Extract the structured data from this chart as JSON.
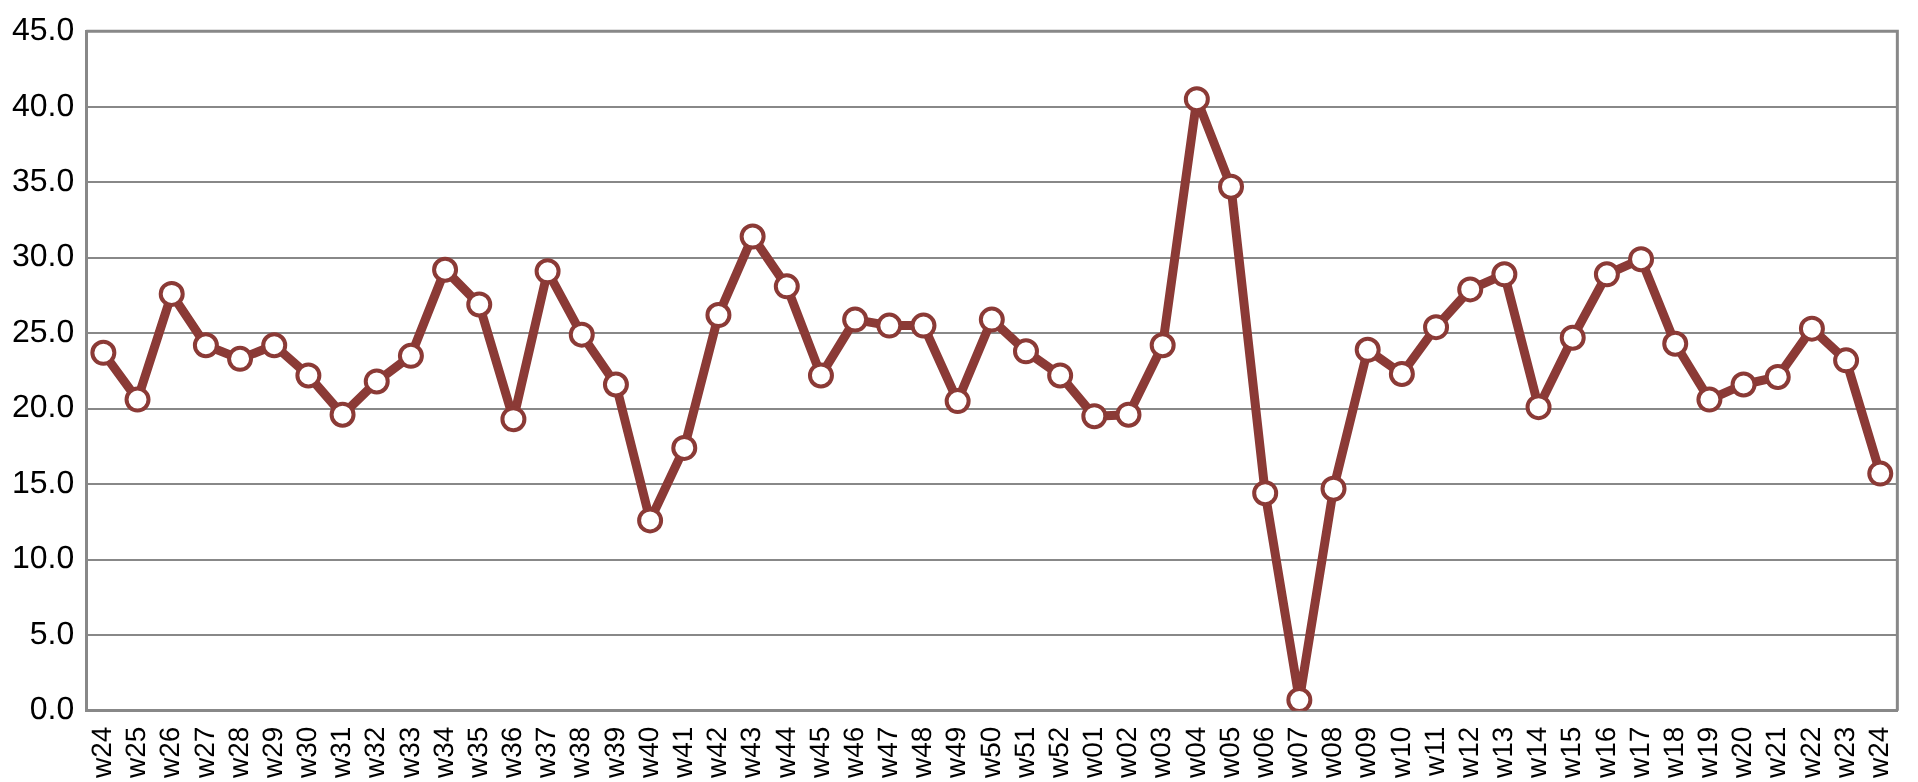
{
  "chart_data": {
    "type": "line",
    "categories": [
      "w24",
      "w25",
      "w26",
      "w27",
      "w28",
      "w29",
      "w30",
      "w31",
      "w32",
      "w33",
      "w34",
      "w35",
      "w36",
      "w37",
      "w38",
      "w39",
      "w40",
      "w41",
      "w42",
      "w43",
      "w44",
      "w45",
      "w46",
      "w47",
      "w48",
      "w49",
      "w50",
      "w51",
      "w52",
      "w01",
      "w02",
      "w03",
      "w04",
      "w05",
      "w06",
      "w07",
      "w08",
      "w09",
      "w10",
      "w11",
      "w12",
      "w13",
      "w14",
      "w15",
      "w16",
      "w17",
      "w18",
      "w19",
      "w20",
      "w21",
      "w22",
      "w23",
      "w24"
    ],
    "series": [
      {
        "color": "#8b3a36",
        "values": [
          23.7,
          20.6,
          27.6,
          24.2,
          23.3,
          24.2,
          22.2,
          19.6,
          21.8,
          23.5,
          29.2,
          26.9,
          19.3,
          29.1,
          24.9,
          21.6,
          12.6,
          17.4,
          26.2,
          31.4,
          28.1,
          22.2,
          25.9,
          25.5,
          25.5,
          20.5,
          25.9,
          23.8,
          22.2,
          19.5,
          19.6,
          24.2,
          40.5,
          34.7,
          14.4,
          0.7,
          14.7,
          23.9,
          22.3,
          25.4,
          27.9,
          28.9,
          20.1,
          24.7,
          28.9,
          29.9,
          24.3,
          20.6,
          21.6,
          22.1,
          25.3,
          23.2,
          15.7
        ]
      }
    ],
    "ylim": [
      0,
      45
    ],
    "yticks": [
      {
        "value": 0,
        "label": "0.0"
      },
      {
        "value": 5,
        "label": "5.0"
      },
      {
        "value": 10,
        "label": "10.0"
      },
      {
        "value": 15,
        "label": "15.0"
      },
      {
        "value": 20,
        "label": "20.0"
      },
      {
        "value": 25,
        "label": "25.0"
      },
      {
        "value": 30,
        "label": "30.0"
      },
      {
        "value": 35,
        "label": "35.0"
      },
      {
        "value": 40,
        "label": "40.0"
      },
      {
        "value": 45,
        "label": "45.0"
      }
    ],
    "grid": "y",
    "legend": false,
    "marker": "circle",
    "line_style": "solid"
  }
}
